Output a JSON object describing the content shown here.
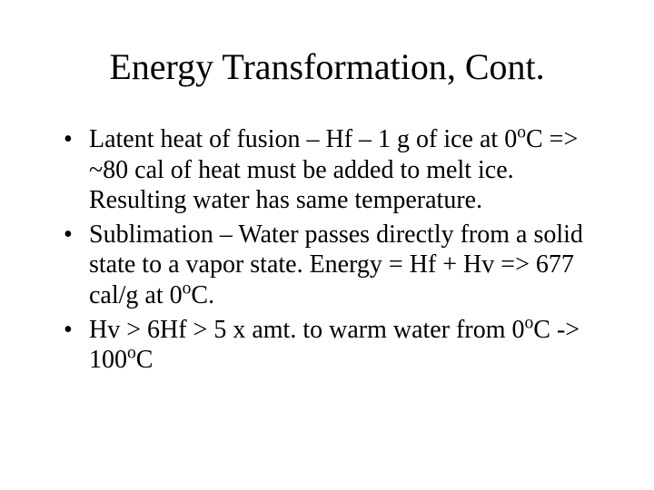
{
  "slide": {
    "title": "Energy Transformation, Cont.",
    "title_fontsize": 40,
    "body_fontsize": 28,
    "background_color": "#ffffff",
    "text_color": "#000000",
    "font_family": "Times New Roman",
    "bullets": [
      {
        "parts": [
          {
            "t": "Latent heat of fusion – Hf – 1 g of ice at 0"
          },
          {
            "t": "o",
            "sup": true
          },
          {
            "t": "C => ~80 cal of heat must be added to melt ice. Resulting water has same temperature."
          }
        ]
      },
      {
        "parts": [
          {
            "t": "Sublimation – Water passes directly from a solid state to a vapor state.  Energy = Hf + Hv => 677 cal/g at 0"
          },
          {
            "t": "o",
            "sup": true
          },
          {
            "t": "C."
          }
        ]
      },
      {
        "parts": [
          {
            "t": "Hv > 6Hf > 5 x amt. to warm water from 0"
          },
          {
            "t": "o",
            "sup": true
          },
          {
            "t": "C -> 100"
          },
          {
            "t": "o",
            "sup": true
          },
          {
            "t": "C"
          }
        ]
      }
    ]
  }
}
